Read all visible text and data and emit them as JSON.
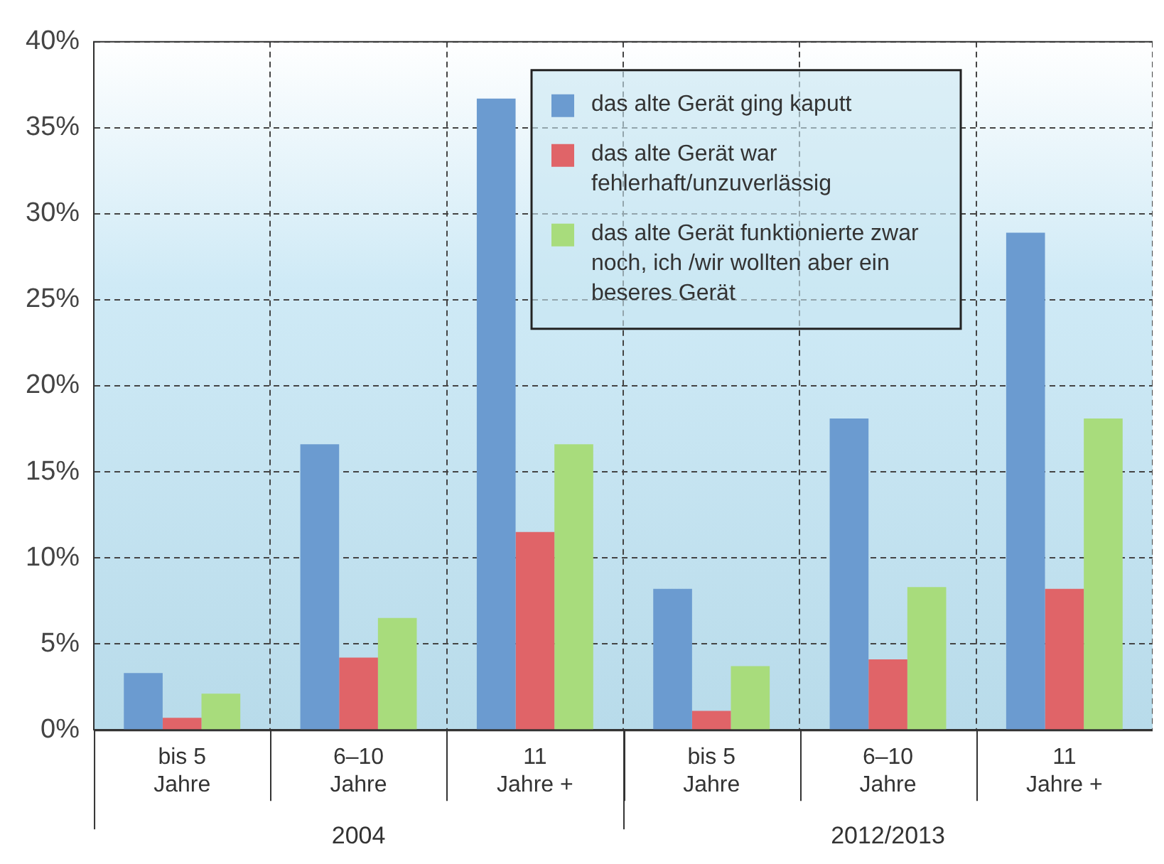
{
  "chart_data": {
    "type": "bar",
    "categories": [
      "bis 5 Jahre",
      "6–10 Jahre",
      "11 Jahre +",
      "bis 5 Jahre",
      "6–10 Jahre",
      "11 Jahre +"
    ],
    "series": [
      {
        "name": "das alte Gerät ging kaputt",
        "color": "#6b9bd0",
        "values": [
          3.3,
          16.6,
          36.7,
          8.2,
          18.1,
          28.9
        ]
      },
      {
        "name": "das alte Gerät war fehlerhaft/unzuverlässig",
        "color": "#e06468",
        "values": [
          0.7,
          4.2,
          11.5,
          1.1,
          4.1,
          8.2
        ]
      },
      {
        "name": "das alte Gerät funktionierte zwar noch, ich /wir wollten aber ein beseres Gerät",
        "color": "#a8dc7c",
        "values": [
          2.1,
          6.5,
          16.6,
          3.7,
          8.3,
          18.1
        ]
      }
    ],
    "ylim": [
      0,
      40
    ],
    "yticks": [
      {
        "value": 0,
        "label": "0%"
      },
      {
        "value": 5,
        "label": "5%"
      },
      {
        "value": 10,
        "label": "10%"
      },
      {
        "value": 15,
        "label": "15%"
      },
      {
        "value": 20,
        "label": "20%"
      },
      {
        "value": 25,
        "label": "25%"
      },
      {
        "value": 30,
        "label": "30%"
      },
      {
        "value": 35,
        "label": "35%"
      },
      {
        "value": 40,
        "label": "40%"
      }
    ],
    "annotations": [
      "2004",
      "2012/2013"
    ],
    "grid": true,
    "legend": "top right"
  }
}
